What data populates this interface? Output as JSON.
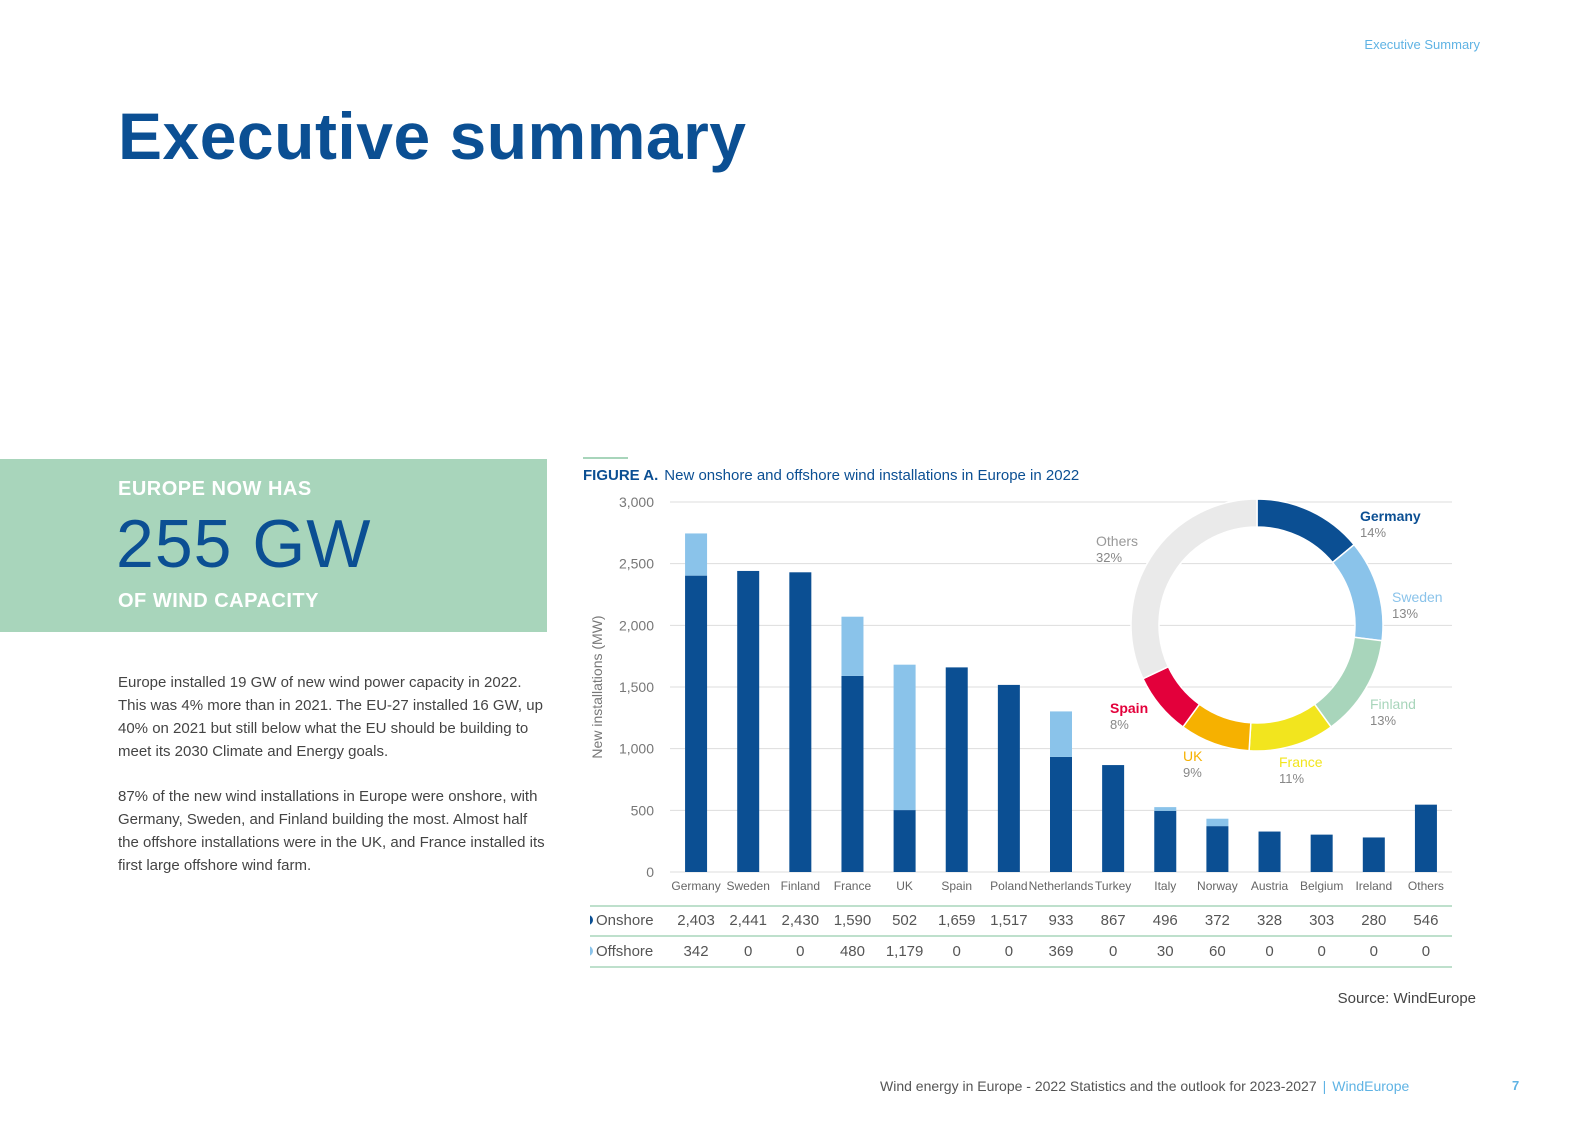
{
  "header": {
    "section_label": "Executive Summary"
  },
  "title": "Executive summary",
  "highlight": {
    "pre": "EUROPE NOW HAS",
    "value": "255 GW",
    "post": "OF WIND CAPACITY"
  },
  "body": {
    "paragraph1": "Europe installed 19 GW of new wind power capacity in 2022. This was 4% more than in 2021. The EU-27 installed 16 GW, up 40% on 2021 but still below what the EU should be building to meet its 2030 Climate and Energy goals.",
    "paragraph2": "87% of the new wind installations in Europe were onshore, with Germany, Sweden, and Finland building the most. Almost half the offshore installations were in the UK, and France installed its first large offshore wind farm."
  },
  "figure": {
    "label": "FIGURE A.",
    "caption": "New onshore and offshore wind installations in Europe in 2022",
    "source": "Source: WindEurope"
  },
  "chart_data": [
    {
      "type": "bar",
      "stacked": true,
      "ylabel": "New installations (MW)",
      "ylim": [
        0,
        3000
      ],
      "yticks": [
        0,
        500,
        1000,
        1500,
        2000,
        2500,
        3000
      ],
      "ytick_labels": [
        "0",
        "500",
        "1,000",
        "1,500",
        "2,000",
        "2,500",
        "3,000"
      ],
      "grid": true,
      "categories": [
        "Germany",
        "Sweden",
        "Finland",
        "France",
        "UK",
        "Spain",
        "Poland",
        "Netherlands",
        "Turkey",
        "Italy",
        "Norway",
        "Austria",
        "Belgium",
        "Ireland",
        "Others"
      ],
      "series": [
        {
          "name": "Onshore",
          "color": "#0b4f93",
          "values": [
            2403,
            2441,
            2430,
            1590,
            502,
            1659,
            1517,
            933,
            867,
            496,
            372,
            328,
            303,
            280,
            546
          ],
          "labels": [
            "2,403",
            "2,441",
            "2,430",
            "1,590",
            "502",
            "1,659",
            "1,517",
            "933",
            "867",
            "496",
            "372",
            "328",
            "303",
            "280",
            "546"
          ]
        },
        {
          "name": "Offshore",
          "color": "#8ac3ea",
          "values": [
            342,
            0,
            0,
            480,
            1179,
            0,
            0,
            369,
            0,
            30,
            60,
            0,
            0,
            0,
            0
          ],
          "labels": [
            "342",
            "0",
            "0",
            "480",
            "1,179",
            "0",
            "0",
            "369",
            "0",
            "30",
            "60",
            "0",
            "0",
            "0",
            "0"
          ]
        }
      ]
    },
    {
      "type": "pie",
      "donut": true,
      "slices": [
        {
          "name": "Germany",
          "value": 14,
          "label": "14%",
          "color": "#0b4f93"
        },
        {
          "name": "Sweden",
          "value": 13,
          "label": "13%",
          "color": "#8ac3ea"
        },
        {
          "name": "Finland",
          "value": 13,
          "label": "13%",
          "color": "#a8d5bb"
        },
        {
          "name": "France",
          "value": 11,
          "label": "11%",
          "color": "#f2e51e"
        },
        {
          "name": "UK",
          "value": 9,
          "label": "9%",
          "color": "#f6b100"
        },
        {
          "name": "Spain",
          "value": 8,
          "label": "8%",
          "color": "#e3003b"
        },
        {
          "name": "Others",
          "value": 32,
          "label": "32%",
          "color": "#eaeaea"
        }
      ]
    }
  ],
  "footer": {
    "publication": "Wind energy in Europe - 2022 Statistics and the outlook for 2023-2027",
    "separator": "|",
    "brand": "WindEurope",
    "page_number": "7"
  }
}
